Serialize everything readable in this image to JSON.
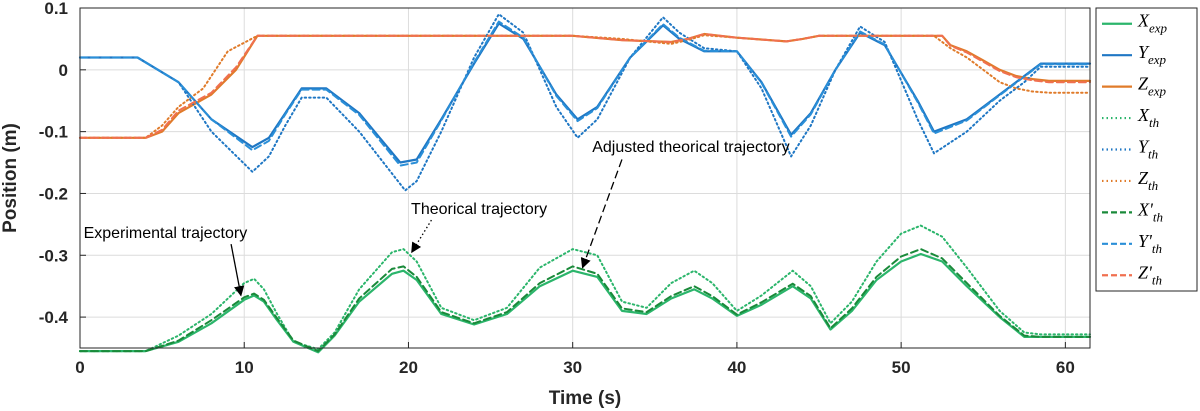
{
  "chart_data": {
    "type": "line",
    "xlabel": "Time (s)",
    "ylabel": "Position (m)",
    "xlim": [
      0,
      61.5
    ],
    "ylim": [
      -0.45,
      0.1
    ],
    "xticks": [
      0,
      10,
      20,
      30,
      40,
      50,
      60
    ],
    "yticks": [
      0.1,
      0,
      -0.1,
      -0.2,
      -0.3,
      -0.4
    ],
    "ytick_labels": [
      "0.1",
      "0",
      "-0.1",
      "-0.2",
      "-0.3",
      "-0.4"
    ],
    "grid": true,
    "legend_position": "right",
    "colors": {
      "green": "#2bb56b",
      "blue": "#1f77c4",
      "orange": "#e07b2a",
      "dark_green": "#1a8a3a",
      "light_blue": "#2a8fd8",
      "light_orange": "#f07050"
    },
    "series": [
      {
        "key": "x_exp",
        "legend": {
          "main": "X",
          "sub": "exp"
        },
        "color": "#2bb56b",
        "style": "solid",
        "x": [
          0,
          4,
          6,
          8,
          10,
          10.6,
          11.2,
          12,
          13,
          14.5,
          15.5,
          17,
          19,
          19.7,
          20.5,
          22,
          24,
          26,
          28,
          30,
          31.5,
          33,
          34.5,
          36,
          37.4,
          38.5,
          40,
          41.5,
          43.4,
          44.5,
          45.7,
          47,
          48.5,
          50,
          51.2,
          52.5,
          54,
          56,
          57.5,
          58.5,
          60,
          61.5
        ],
        "y": [
          -0.455,
          -0.455,
          -0.44,
          -0.41,
          -0.372,
          -0.365,
          -0.375,
          -0.405,
          -0.44,
          -0.457,
          -0.43,
          -0.375,
          -0.33,
          -0.325,
          -0.34,
          -0.395,
          -0.412,
          -0.395,
          -0.35,
          -0.325,
          -0.335,
          -0.39,
          -0.395,
          -0.37,
          -0.355,
          -0.37,
          -0.398,
          -0.38,
          -0.35,
          -0.37,
          -0.42,
          -0.39,
          -0.34,
          -0.31,
          -0.298,
          -0.31,
          -0.35,
          -0.4,
          -0.432,
          -0.432,
          -0.432,
          -0.432
        ]
      },
      {
        "key": "y_exp",
        "legend": {
          "main": "Y",
          "sub": "exp"
        },
        "color": "#1f77c4",
        "style": "solid",
        "x": [
          0,
          3.5,
          6,
          8,
          10.5,
          11.5,
          12.5,
          13.5,
          15,
          17,
          19.5,
          20.5,
          22,
          24,
          25.5,
          27,
          29,
          30.3,
          31.5,
          33.5,
          35.5,
          36.5,
          38,
          40,
          41.5,
          43.3,
          44.5,
          46,
          47.5,
          49,
          51,
          52,
          54,
          56,
          57.5,
          58.5,
          61.5
        ],
        "y": [
          0.02,
          0.02,
          -0.02,
          -0.08,
          -0.125,
          -0.11,
          -0.07,
          -0.03,
          -0.03,
          -0.07,
          -0.15,
          -0.145,
          -0.08,
          0.01,
          0.075,
          0.05,
          -0.04,
          -0.08,
          -0.06,
          0.02,
          0.072,
          0.05,
          0.03,
          0.03,
          -0.02,
          -0.105,
          -0.07,
          0.0,
          0.06,
          0.04,
          -0.05,
          -0.1,
          -0.08,
          -0.04,
          -0.01,
          0.01,
          0.01
        ]
      },
      {
        "key": "z_exp",
        "legend": {
          "main": "Z",
          "sub": "exp"
        },
        "color": "#e07b2a",
        "style": "solid",
        "x": [
          0,
          4,
          5,
          6,
          8,
          9.5,
          10.8,
          12,
          20,
          30,
          33,
          36,
          37,
          38,
          40,
          43,
          44,
          45,
          49,
          50,
          52.5,
          53,
          54,
          55,
          56,
          57,
          58,
          59,
          61.5
        ],
        "y": [
          -0.11,
          -0.11,
          -0.1,
          -0.07,
          -0.04,
          0.0,
          0.055,
          0.055,
          0.055,
          0.055,
          0.048,
          0.045,
          0.05,
          0.058,
          0.052,
          0.046,
          0.05,
          0.055,
          0.055,
          0.055,
          0.055,
          0.04,
          0.03,
          0.015,
          0.0,
          -0.01,
          -0.015,
          -0.018,
          -0.018
        ]
      },
      {
        "key": "x_th",
        "legend": {
          "main": "X",
          "sub": "th"
        },
        "color": "#2bb56b",
        "style": "dotted",
        "x": [
          0,
          4,
          6,
          8,
          10,
          10.6,
          11.2,
          12,
          13,
          14.5,
          15.5,
          17,
          19,
          19.7,
          20.5,
          22,
          24,
          26,
          28,
          30,
          31.5,
          33,
          34.5,
          36,
          37.4,
          38.5,
          40,
          41.5,
          43.4,
          44.5,
          45.7,
          47,
          48.5,
          50,
          51.2,
          52.5,
          54,
          56,
          57.5,
          58.5,
          60,
          61.5
        ],
        "y": [
          -0.455,
          -0.455,
          -0.43,
          -0.395,
          -0.345,
          -0.338,
          -0.355,
          -0.395,
          -0.44,
          -0.452,
          -0.425,
          -0.355,
          -0.295,
          -0.29,
          -0.31,
          -0.385,
          -0.405,
          -0.385,
          -0.32,
          -0.29,
          -0.3,
          -0.375,
          -0.385,
          -0.345,
          -0.325,
          -0.345,
          -0.39,
          -0.365,
          -0.325,
          -0.35,
          -0.41,
          -0.375,
          -0.31,
          -0.265,
          -0.252,
          -0.27,
          -0.32,
          -0.39,
          -0.425,
          -0.428,
          -0.428,
          -0.428
        ]
      },
      {
        "key": "y_th",
        "legend": {
          "main": "Y",
          "sub": "th"
        },
        "color": "#1f77c4",
        "style": "dotted",
        "x": [
          0,
          3.5,
          6,
          8,
          10.5,
          11.5,
          12.5,
          13.5,
          15,
          17,
          19.8,
          20.5,
          22,
          24,
          25.5,
          27,
          29,
          30.3,
          31.5,
          33.5,
          35.5,
          36.5,
          38,
          40,
          41.5,
          43.3,
          44.5,
          46,
          47.5,
          49,
          51,
          52,
          54,
          56,
          57.5,
          58.5,
          61.5
        ],
        "y": [
          0.02,
          0.02,
          -0.02,
          -0.1,
          -0.165,
          -0.14,
          -0.09,
          -0.045,
          -0.045,
          -0.1,
          -0.195,
          -0.18,
          -0.1,
          0.02,
          0.09,
          0.06,
          -0.06,
          -0.11,
          -0.08,
          0.02,
          0.085,
          0.06,
          0.035,
          0.03,
          -0.03,
          -0.14,
          -0.09,
          0.0,
          0.07,
          0.045,
          -0.08,
          -0.135,
          -0.1,
          -0.05,
          -0.02,
          0.005,
          0.005
        ]
      },
      {
        "key": "z_th",
        "legend": {
          "main": "Z",
          "sub": "th"
        },
        "color": "#e07b2a",
        "style": "dotted",
        "x": [
          0,
          4,
          5,
          6,
          7.5,
          9,
          10.8,
          12,
          20,
          30,
          33,
          36,
          37,
          38,
          40,
          43,
          44,
          45,
          49,
          50,
          52,
          53,
          54,
          55,
          56,
          57,
          58,
          59,
          61.5
        ],
        "y": [
          -0.11,
          -0.11,
          -0.09,
          -0.06,
          -0.03,
          0.03,
          0.055,
          0.055,
          0.055,
          0.055,
          0.05,
          0.042,
          0.048,
          0.056,
          0.052,
          0.046,
          0.05,
          0.055,
          0.055,
          0.055,
          0.055,
          0.035,
          0.02,
          0.0,
          -0.02,
          -0.03,
          -0.035,
          -0.037,
          -0.037
        ]
      },
      {
        "key": "x_th_adj",
        "legend": {
          "main": "X'",
          "sub": "th"
        },
        "color": "#1a8a3a",
        "style": "dashed",
        "x": [
          0,
          4,
          6,
          8,
          10,
          10.6,
          11.2,
          12,
          13,
          14.5,
          15.5,
          17,
          19,
          19.7,
          20.5,
          22,
          24,
          26,
          28,
          30,
          31.5,
          33,
          34.5,
          36,
          37.4,
          38.5,
          40,
          41.5,
          43.4,
          44.5,
          45.7,
          47,
          48.5,
          50,
          51.2,
          52.5,
          54,
          56,
          57.5,
          58.5,
          60,
          61.5
        ],
        "y": [
          -0.455,
          -0.455,
          -0.438,
          -0.405,
          -0.368,
          -0.362,
          -0.372,
          -0.402,
          -0.438,
          -0.455,
          -0.428,
          -0.37,
          -0.322,
          -0.318,
          -0.335,
          -0.392,
          -0.41,
          -0.392,
          -0.345,
          -0.318,
          -0.33,
          -0.386,
          -0.392,
          -0.366,
          -0.35,
          -0.366,
          -0.396,
          -0.376,
          -0.346,
          -0.366,
          -0.418,
          -0.386,
          -0.335,
          -0.302,
          -0.29,
          -0.305,
          -0.345,
          -0.398,
          -0.43,
          -0.432,
          -0.432,
          -0.432
        ]
      },
      {
        "key": "y_th_adj",
        "legend": {
          "main": "Y'",
          "sub": "th"
        },
        "color": "#2a8fd8",
        "style": "dashed",
        "x": [
          0,
          3.5,
          6,
          8,
          10.5,
          11.5,
          12.5,
          13.5,
          15,
          17,
          19.5,
          20.5,
          22,
          24,
          25.5,
          27,
          29,
          30.3,
          31.5,
          33.5,
          35.5,
          36.5,
          38,
          40,
          41.5,
          43.3,
          44.5,
          46,
          47.5,
          49,
          51,
          52,
          54,
          56,
          57.5,
          58.5,
          61.5
        ],
        "y": [
          0.02,
          0.02,
          -0.02,
          -0.08,
          -0.13,
          -0.115,
          -0.072,
          -0.032,
          -0.032,
          -0.073,
          -0.155,
          -0.15,
          -0.082,
          0.012,
          0.078,
          0.052,
          -0.042,
          -0.083,
          -0.062,
          0.02,
          0.074,
          0.052,
          0.031,
          0.03,
          -0.021,
          -0.108,
          -0.072,
          0.0,
          0.062,
          0.041,
          -0.052,
          -0.103,
          -0.082,
          -0.041,
          -0.011,
          0.009,
          0.009
        ]
      },
      {
        "key": "z_th_adj",
        "legend": {
          "main": "Z'",
          "sub": "th"
        },
        "color": "#f07050",
        "style": "dashed",
        "x": [
          0,
          4,
          5,
          6,
          8,
          9.5,
          10.8,
          12,
          20,
          30,
          33,
          36,
          37,
          38,
          40,
          43,
          44,
          45,
          49,
          50,
          52.5,
          53,
          54,
          55,
          56,
          57,
          58,
          59,
          61.5
        ],
        "y": [
          -0.11,
          -0.11,
          -0.097,
          -0.066,
          -0.037,
          0.004,
          0.055,
          0.055,
          0.055,
          0.055,
          0.048,
          0.045,
          0.05,
          0.058,
          0.052,
          0.046,
          0.05,
          0.055,
          0.055,
          0.055,
          0.055,
          0.039,
          0.028,
          0.013,
          -0.002,
          -0.012,
          -0.017,
          -0.02,
          -0.02
        ]
      }
    ],
    "annotations": [
      {
        "text": "Experimental trajectory",
        "text_at": [
          5.2,
          -0.272
        ],
        "arrow_from": [
          9.2,
          -0.282
        ],
        "arrow_to": [
          9.8,
          -0.365
        ],
        "line": "solid"
      },
      {
        "text": "Theorical trajectory",
        "text_at": [
          24.3,
          -0.233
        ],
        "arrow_from": [
          21.4,
          -0.243
        ],
        "arrow_to": [
          20.2,
          -0.295
        ],
        "line": "dotted"
      },
      {
        "text": "Adjusted theorical trajectory",
        "text_at": [
          37.2,
          -0.133
        ],
        "arrow_from": [
          33.0,
          -0.145
        ],
        "arrow_to": [
          30.6,
          -0.32
        ],
        "line": "dashed"
      }
    ]
  }
}
